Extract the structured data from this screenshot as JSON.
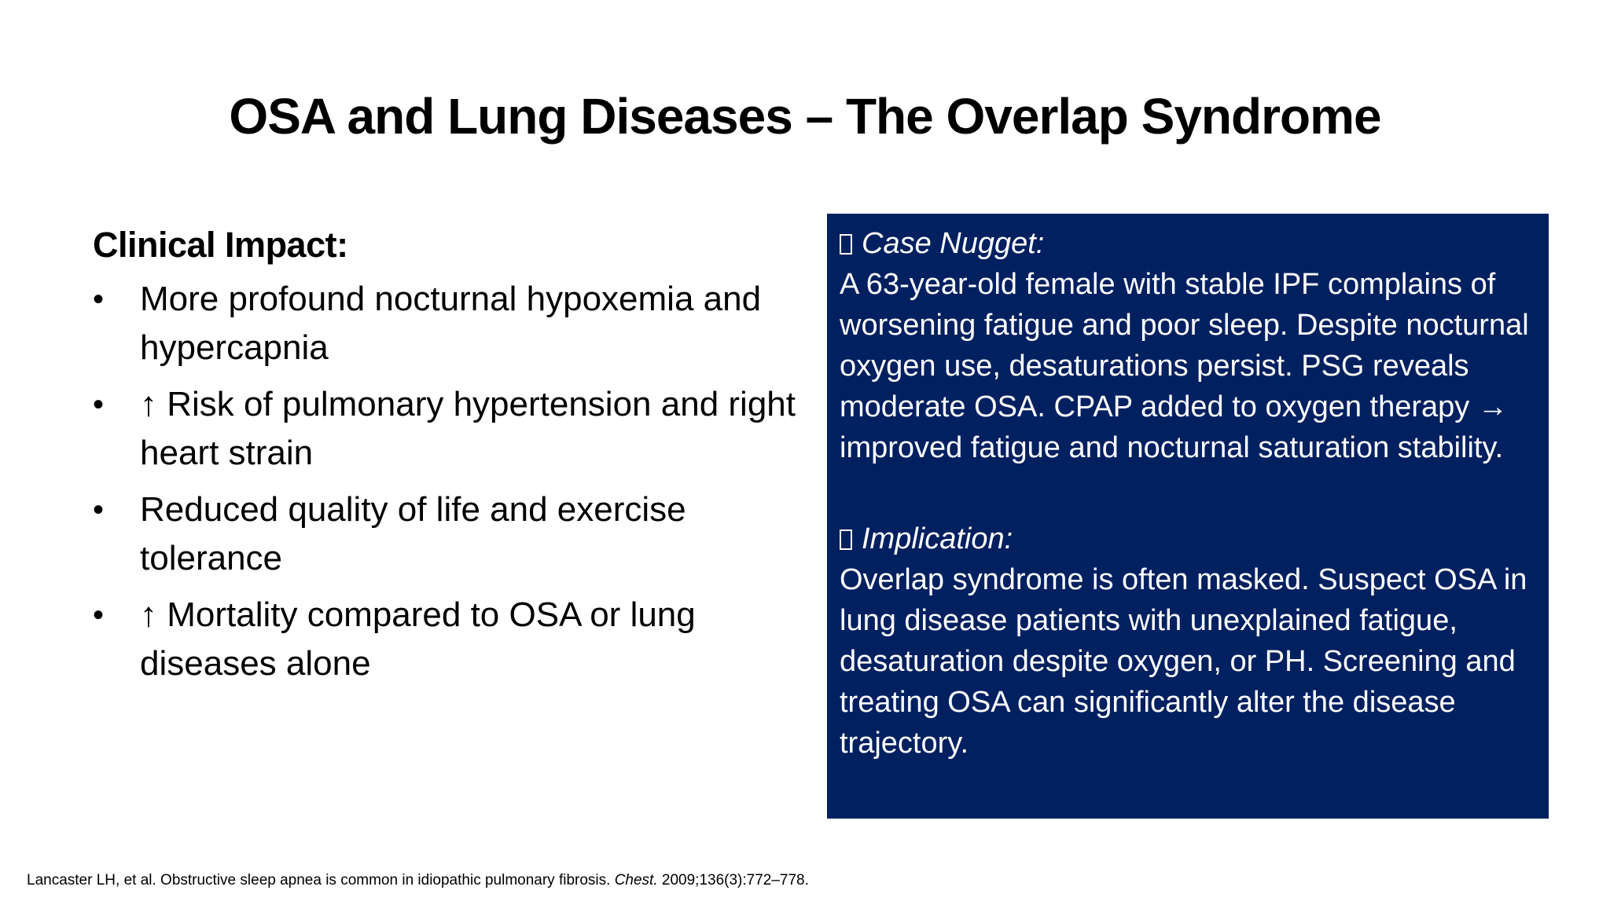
{
  "slide": {
    "title": "OSA and Lung Diseases – The Overlap Syndrome"
  },
  "left": {
    "heading": "Clinical Impact:",
    "bullet_symbol": "•",
    "bullets": [
      "More profound nocturnal hypoxemia and hypercapnia",
      "↑ Risk of pulmonary hypertension and right heart strain",
      "Reduced quality of life and exercise tolerance",
      "↑ Mortality compared to OSA or lung diseases alone"
    ]
  },
  "case_box": {
    "background_color": "#002060",
    "text_color": "#ffffff",
    "case_nugget": {
      "icon": "missing-glyph-icon",
      "heading": "Case Nugget:",
      "text": "A 63-year-old female with stable IPF complains of worsening fatigue and poor sleep. Despite nocturnal oxygen use, desaturations persist. PSG reveals moderate OSA. CPAP added to oxygen therapy → improved fatigue and nocturnal saturation stability."
    },
    "implication": {
      "icon": "missing-glyph-icon",
      "heading": "Implication:",
      "text": "Overlap syndrome is often masked. Suspect OSA in lung disease patients with unexplained fatigue, desaturation despite oxygen, or PH. Screening and treating OSA can significantly alter the disease trajectory."
    }
  },
  "citation": {
    "before_journal": "Lancaster LH, et al. Obstructive sleep apnea is common in idiopathic pulmonary fibrosis. ",
    "journal": "Chest.",
    "after_journal": " 2009;136(3):772–778."
  }
}
